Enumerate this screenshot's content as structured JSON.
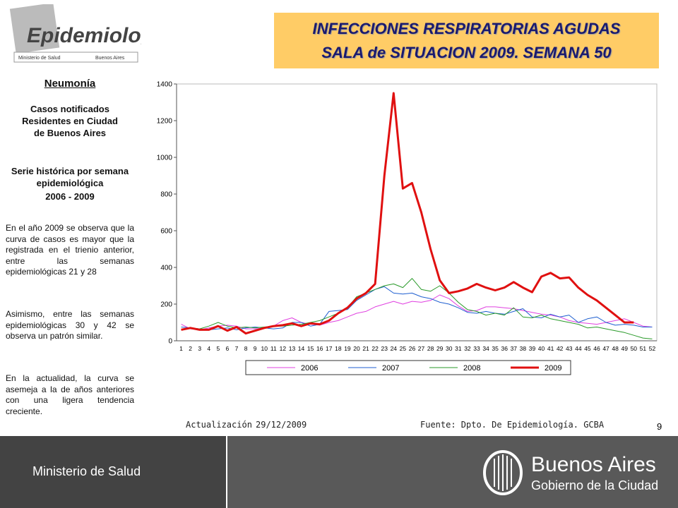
{
  "header": {
    "logo_text": "Epidemiología",
    "logo_sub1": "Ministerio de Salud",
    "logo_sub2": "Buenos Aires",
    "title_line1": "INFECCIONES RESPIRATORIAS AGUDAS",
    "title_line2": "SALA de SITUACION 2009. SEMANA 50"
  },
  "sidebar": {
    "heading": "Neumonía",
    "subtitle": "Casos notificados Residentes en Ciudad de Buenos Aires",
    "series_label": "Serie histórica por semana epidemiológica",
    "years": "2006 - 2009",
    "paragraphs": [
      "En el año 2009 se observa que la curva de casos es mayor que la registrada en el trienio anterior, entre las semanas epidemiológicas 21 y 28",
      "Asimismo, entre las semanas epidemiológicas 30 y 42 se observa un patrón similar.",
      "En la actualidad, la curva se asemeja a la de años anteriores con una ligera tendencia creciente."
    ]
  },
  "chart_data": {
    "type": "line",
    "categories": [
      "1",
      "2",
      "3",
      "4",
      "5",
      "6",
      "7",
      "8",
      "9",
      "10",
      "11",
      "12",
      "13",
      "14",
      "15",
      "16",
      "17",
      "18",
      "19",
      "20",
      "21",
      "22",
      "23",
      "24",
      "25",
      "26",
      "27",
      "28",
      "29",
      "30",
      "31",
      "32",
      "33",
      "34",
      "35",
      "36",
      "37",
      "38",
      "39",
      "40",
      "41",
      "42",
      "43",
      "44",
      "45",
      "46",
      "47",
      "48",
      "49",
      "50",
      "51",
      "52"
    ],
    "ylim": [
      0,
      1400
    ],
    "yticks": [
      0,
      200,
      400,
      600,
      800,
      1000,
      1200,
      1400
    ],
    "grid": false,
    "legend": "bottom",
    "series": [
      {
        "name": "2006",
        "color": "#e040e0",
        "width": 1,
        "values": [
          90,
          65,
          60,
          70,
          80,
          85,
          80,
          65,
          65,
          70,
          80,
          110,
          125,
          100,
          90,
          85,
          100,
          110,
          130,
          150,
          160,
          185,
          200,
          215,
          200,
          215,
          210,
          220,
          250,
          230,
          190,
          160,
          165,
          185,
          185,
          180,
          175,
          165,
          155,
          145,
          140,
          130,
          110,
          100,
          95,
          90,
          100,
          110,
          120,
          100,
          80,
          75
        ]
      },
      {
        "name": "2007",
        "color": "#1f5fd0",
        "width": 1,
        "values": [
          75,
          70,
          65,
          60,
          65,
          70,
          60,
          70,
          75,
          70,
          65,
          70,
          100,
          100,
          80,
          90,
          160,
          165,
          170,
          220,
          250,
          280,
          295,
          260,
          255,
          260,
          240,
          230,
          210,
          200,
          180,
          155,
          150,
          160,
          150,
          145,
          160,
          175,
          130,
          125,
          145,
          130,
          140,
          100,
          120,
          130,
          100,
          85,
          90,
          85,
          75,
          75
        ]
      },
      {
        "name": "2008",
        "color": "#2a9a2a",
        "width": 1,
        "values": [
          60,
          70,
          65,
          80,
          100,
          80,
          70,
          75,
          70,
          75,
          80,
          80,
          85,
          90,
          100,
          110,
          130,
          150,
          180,
          240,
          260,
          280,
          300,
          310,
          290,
          340,
          280,
          270,
          300,
          260,
          210,
          170,
          160,
          140,
          150,
          140,
          180,
          130,
          125,
          140,
          120,
          110,
          100,
          90,
          70,
          75,
          65,
          55,
          45,
          30,
          15,
          10
        ]
      },
      {
        "name": "2009",
        "color": "#e01010",
        "width": 3,
        "values": [
          60,
          70,
          60,
          60,
          80,
          55,
          75,
          40,
          55,
          70,
          80,
          85,
          95,
          80,
          95,
          90,
          110,
          150,
          180,
          230,
          260,
          310,
          900,
          1350,
          830,
          860,
          700,
          500,
          330,
          260,
          270,
          285,
          310,
          290,
          275,
          290,
          320,
          290,
          265,
          350,
          370,
          340,
          345,
          290,
          250,
          220,
          180,
          140,
          100,
          100,
          null,
          null
        ]
      }
    ]
  },
  "footer": {
    "update_label": "Actualización",
    "update_date": "29/12/2009",
    "source": "Fuente: Dpto. De Epidemiología.  GCBA",
    "page_number": "9",
    "ministry": "Ministerio de Salud",
    "city": "Buenos Aires",
    "city_sub": "Gobierno de la Ciudad"
  }
}
